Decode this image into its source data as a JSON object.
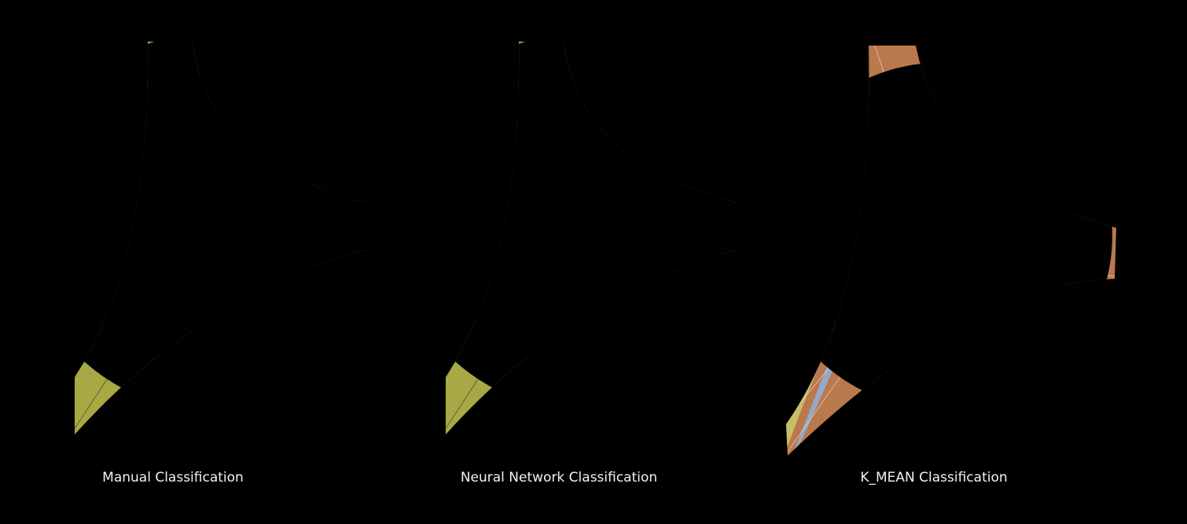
{
  "panels": [
    {
      "caption": "Manual Classification"
    },
    {
      "caption": "Neural Network Classification"
    },
    {
      "caption": "K_MEAN Classification"
    }
  ]
}
